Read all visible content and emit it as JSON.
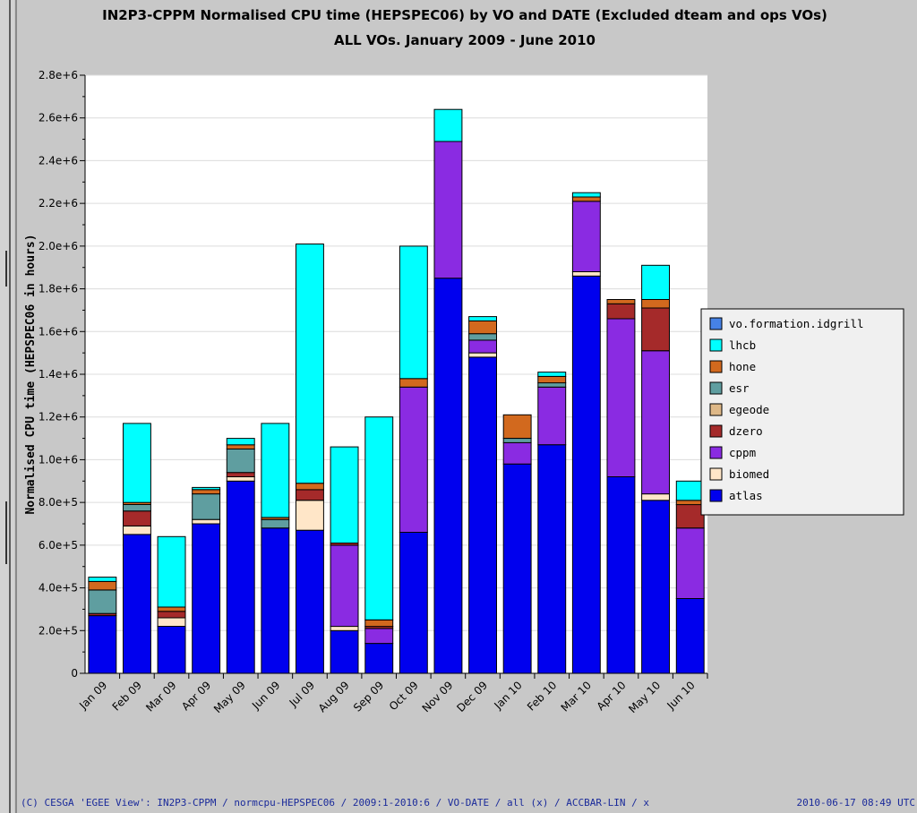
{
  "chart_data": {
    "type": "bar",
    "stacked": true,
    "title": "IN2P3-CPPM Normalised CPU time (HEPSPEC06) by VO and DATE (Excluded dteam and ops VOs)",
    "subtitle": "ALL VOs. January 2009 - June 2010",
    "ylabel": "Normalised CPU time (HEPSPEC06 in hours)",
    "xlabel": "",
    "ylim": [
      0,
      2800000
    ],
    "yticks": [
      {
        "value": 0,
        "label": "0"
      },
      {
        "value": 200000,
        "label": "2.0e+5"
      },
      {
        "value": 400000,
        "label": "4.0e+5"
      },
      {
        "value": 600000,
        "label": "6.0e+5"
      },
      {
        "value": 800000,
        "label": "8.0e+5"
      },
      {
        "value": 1000000,
        "label": "1.0e+6"
      },
      {
        "value": 1200000,
        "label": "1.2e+6"
      },
      {
        "value": 1400000,
        "label": "1.4e+6"
      },
      {
        "value": 1600000,
        "label": "1.6e+6"
      },
      {
        "value": 1800000,
        "label": "1.8e+6"
      },
      {
        "value": 2000000,
        "label": "2.0e+6"
      },
      {
        "value": 2200000,
        "label": "2.2e+6"
      },
      {
        "value": 2400000,
        "label": "2.4e+6"
      },
      {
        "value": 2600000,
        "label": "2.6e+6"
      },
      {
        "value": 2800000,
        "label": "2.8e+6"
      }
    ],
    "grid": true,
    "legend_position": "right",
    "categories": [
      "Jan 09",
      "Feb 09",
      "Mar 09",
      "Apr 09",
      "May 09",
      "Jun 09",
      "Jul 09",
      "Aug 09",
      "Sep 09",
      "Oct 09",
      "Nov 09",
      "Dec 09",
      "Jan 10",
      "Feb 10",
      "Mar 10",
      "Apr 10",
      "May 10",
      "Jun 10"
    ],
    "series": [
      {
        "name": "atlas",
        "color": "#0000ee",
        "values": [
          270000,
          650000,
          220000,
          700000,
          900000,
          680000,
          670000,
          200000,
          140000,
          660000,
          1850000,
          1480000,
          980000,
          1070000,
          1860000,
          920000,
          810000,
          350000
        ]
      },
      {
        "name": "biomed",
        "color": "#ffe6c8",
        "values": [
          0,
          40000,
          40000,
          20000,
          20000,
          0,
          140000,
          20000,
          0,
          0,
          0,
          20000,
          0,
          0,
          20000,
          0,
          30000,
          0
        ]
      },
      {
        "name": "cppm",
        "color": "#8a2be2",
        "values": [
          0,
          0,
          0,
          0,
          0,
          0,
          0,
          380000,
          70000,
          680000,
          640000,
          60000,
          100000,
          270000,
          330000,
          740000,
          670000,
          330000
        ]
      },
      {
        "name": "dzero",
        "color": "#a52a2a",
        "values": [
          10000,
          70000,
          30000,
          0,
          20000,
          0,
          50000,
          10000,
          10000,
          0,
          0,
          0,
          0,
          0,
          0,
          70000,
          200000,
          110000
        ]
      },
      {
        "name": "egeode",
        "color": "#deb887",
        "values": [
          0,
          0,
          0,
          0,
          0,
          0,
          0,
          0,
          0,
          0,
          0,
          0,
          0,
          0,
          0,
          0,
          0,
          0
        ]
      },
      {
        "name": "esr",
        "color": "#5f9ea0",
        "values": [
          110000,
          30000,
          0,
          120000,
          110000,
          40000,
          0,
          0,
          0,
          0,
          0,
          30000,
          20000,
          20000,
          0,
          0,
          0,
          0
        ]
      },
      {
        "name": "hone",
        "color": "#d2691e",
        "values": [
          40000,
          10000,
          20000,
          20000,
          20000,
          10000,
          30000,
          0,
          30000,
          40000,
          0,
          60000,
          110000,
          30000,
          20000,
          20000,
          40000,
          20000
        ]
      },
      {
        "name": "lhcb",
        "color": "#00ffff",
        "values": [
          20000,
          370000,
          330000,
          10000,
          30000,
          440000,
          1120000,
          450000,
          950000,
          620000,
          150000,
          20000,
          0,
          20000,
          20000,
          0,
          160000,
          90000
        ]
      },
      {
        "name": "vo.formation.idgrill",
        "color": "#4682e6",
        "values": [
          0,
          0,
          0,
          0,
          0,
          0,
          0,
          0,
          0,
          0,
          0,
          0,
          0,
          0,
          0,
          0,
          0,
          0
        ]
      }
    ]
  },
  "footer": {
    "left": "(C) CESGA 'EGEE View': IN2P3-CPPM / normcpu-HEPSPEC06 / 2009:1-2010:6 / VO-DATE / all (x) / ACCBAR-LIN / x",
    "right": "2010-06-17 08:49 UTC"
  }
}
